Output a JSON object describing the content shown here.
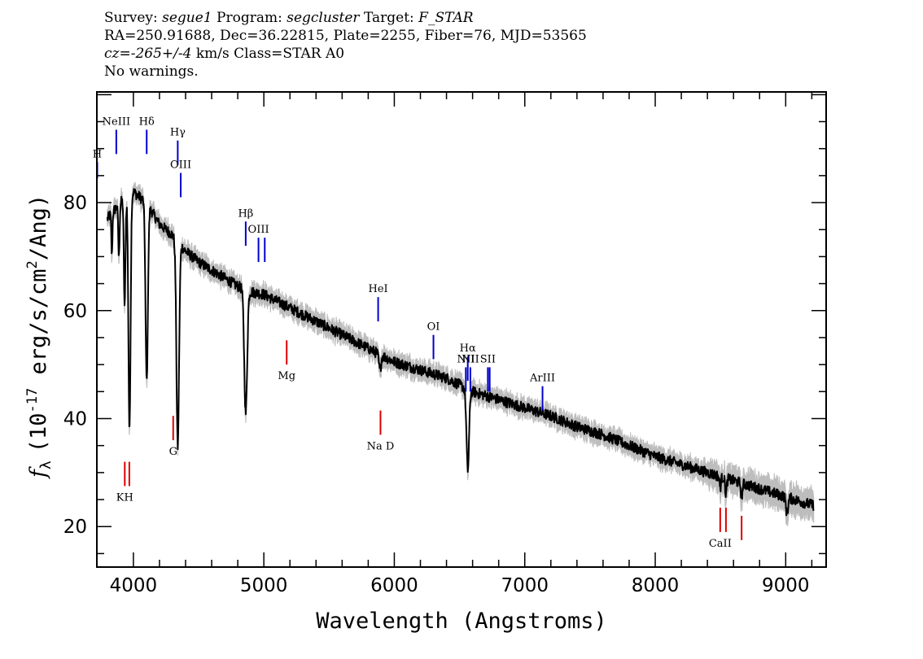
{
  "header": {
    "line1": {
      "survey_label": "Survey:",
      "survey": "segue1",
      "program_label": "Program:",
      "program": "segcluster",
      "target_label": "Target:",
      "target": "F_STAR"
    },
    "line2": "RA=250.91688, Dec=36.22815, Plate=2255, Fiber=76, MJD=53565",
    "line3": {
      "cz_label": "cz=",
      "cz_value": "-265+/-4",
      "rest": " km/s Class=STAR A0"
    },
    "line4": "No warnings."
  },
  "chart_data": {
    "type": "line",
    "xlabel": "Wavelength (Angstroms)",
    "ylabel_prefix": "f",
    "ylabel_sub": "λ",
    "ylabel_mid": "(10",
    "ylabel_exp": "-17",
    "ylabel_rest": " erg/s/cm",
    "ylabel_exp2": "2",
    "ylabel_end": "/Ang)",
    "xlim": [
      3720,
      9310
    ],
    "ylim": [
      12.5,
      100.5
    ],
    "xticks": [
      4000,
      5000,
      6000,
      7000,
      8000,
      9000
    ],
    "xtick_labels": [
      "4000",
      "5000",
      "6000",
      "7000",
      "8000",
      "9000"
    ],
    "yticks": [
      20,
      40,
      60,
      80
    ],
    "ytick_labels": [
      "20",
      "40",
      "60",
      "80"
    ],
    "grid": false,
    "colors": {
      "flux": "#000000",
      "error": "#bdbdbd",
      "emission": "#0000cc",
      "absorption": "#dd0000"
    },
    "continuum": [
      [
        3800,
        77
      ],
      [
        3900,
        80
      ],
      [
        4000,
        82
      ],
      [
        4100,
        80
      ],
      [
        4200,
        76
      ],
      [
        4300,
        74
      ],
      [
        4400,
        71
      ],
      [
        4500,
        69
      ],
      [
        4600,
        67.5
      ],
      [
        4700,
        66
      ],
      [
        4800,
        64.5
      ],
      [
        4900,
        63.5
      ],
      [
        5000,
        63
      ],
      [
        5200,
        60.5
      ],
      [
        5400,
        58
      ],
      [
        5600,
        55.5
      ],
      [
        5800,
        53
      ],
      [
        6000,
        50.5
      ],
      [
        6200,
        49
      ],
      [
        6400,
        47.5
      ],
      [
        6600,
        45
      ],
      [
        6800,
        43.5
      ],
      [
        7000,
        42
      ],
      [
        7200,
        40.5
      ],
      [
        7400,
        38.5
      ],
      [
        7600,
        37
      ],
      [
        7800,
        35
      ],
      [
        8000,
        33
      ],
      [
        8200,
        31.5
      ],
      [
        8400,
        30
      ],
      [
        8600,
        28.5
      ],
      [
        8800,
        27
      ],
      [
        9000,
        25.5
      ],
      [
        9200,
        24
      ]
    ],
    "absorption_features": [
      {
        "center": 3835,
        "depth": -8,
        "width": 4
      },
      {
        "center": 3889,
        "depth": -10,
        "width": 5
      },
      {
        "center": 3933,
        "depth": -20,
        "width": 6
      },
      {
        "center": 3970,
        "depth": -44,
        "width": 8
      },
      {
        "center": 4102,
        "depth": -33,
        "width": 9
      },
      {
        "center": 4340,
        "depth": -38,
        "width": 10
      },
      {
        "center": 4861,
        "depth": -23,
        "width": 11
      },
      {
        "center": 5890,
        "depth": -3,
        "width": 8
      },
      {
        "center": 6563,
        "depth": -15,
        "width": 10
      },
      {
        "center": 8498,
        "depth": -2,
        "width": 6
      },
      {
        "center": 8542,
        "depth": -3,
        "width": 6
      },
      {
        "center": 8662,
        "depth": -2.5,
        "width": 6
      },
      {
        "center": 9010,
        "depth": -3,
        "width": 8
      }
    ],
    "noise_amplitude": 1.0,
    "error_amplitude": 1.4,
    "emission_lines": [
      {
        "label": "H",
        "x": 3723,
        "ymin": 84.5,
        "ymax": 87.5
      },
      {
        "label": "NeIII",
        "x": 3869,
        "ymin": 89,
        "ymax": 93.5
      },
      {
        "label": "Hδ",
        "x": 4102,
        "ymin": 89,
        "ymax": 93.5
      },
      {
        "label": "Hγ",
        "x": 4340,
        "ymin": 87,
        "ymax": 91.5
      },
      {
        "label": "OIII",
        "x": 4363,
        "ymin": 81,
        "ymax": 85.5
      },
      {
        "label": "Hβ",
        "x": 4861,
        "ymin": 72,
        "ymax": 76.5
      },
      {
        "label": "OIII",
        "x": 4959,
        "ymin": 69,
        "ymax": 73.5
      },
      {
        "label": "",
        "x": 5007,
        "ymin": 69,
        "ymax": 73.5
      },
      {
        "label": "HeI",
        "x": 5876,
        "ymin": 58,
        "ymax": 62.5
      },
      {
        "label": "OI",
        "x": 6300,
        "ymin": 51,
        "ymax": 55.5
      },
      {
        "label": "NII",
        "x": 6548,
        "ymin": 45,
        "ymax": 49.5
      },
      {
        "label": "Hα",
        "x": 6563,
        "ymin": 47,
        "ymax": 51.5
      },
      {
        "label": "NII",
        "x": 6583,
        "ymin": 45,
        "ymax": 49.5
      },
      {
        "label": "SII",
        "x": 6717,
        "ymin": 45,
        "ymax": 49.5
      },
      {
        "label": "",
        "x": 6731,
        "ymin": 45,
        "ymax": 49.5
      },
      {
        "label": "ArIII",
        "x": 7136,
        "ymin": 41.5,
        "ymax": 46
      }
    ],
    "absorption_lines": [
      {
        "label": "KH",
        "x": 3934,
        "ymin": 27.5,
        "ymax": 32
      },
      {
        "label": "",
        "x": 3969,
        "ymin": 27.5,
        "ymax": 32
      },
      {
        "label": "G",
        "x": 4305,
        "ymin": 36,
        "ymax": 40.5
      },
      {
        "label": "Mg",
        "x": 5175,
        "ymin": 50,
        "ymax": 54.5
      },
      {
        "label": "Na  D",
        "x": 5894,
        "ymin": 37,
        "ymax": 41.5
      },
      {
        "label": "CaII",
        "x": 8498,
        "ymin": 19,
        "ymax": 23.5
      },
      {
        "label": "",
        "x": 8542,
        "ymin": 19,
        "ymax": 23.5
      },
      {
        "label": "",
        "x": 8662,
        "ymin": 17.5,
        "ymax": 22
      }
    ]
  }
}
